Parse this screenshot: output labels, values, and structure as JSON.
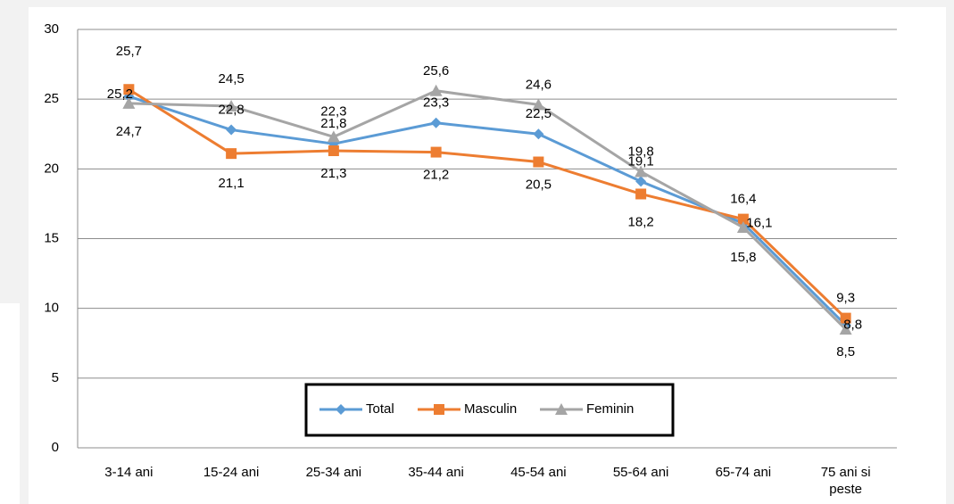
{
  "chart_data": {
    "type": "line",
    "categories": [
      "3-14 ani",
      "15-24 ani",
      "25-34 ani",
      "35-44 ani",
      "45-54 ani",
      "55-64 ani",
      "65-74 ani",
      "75 ani si peste"
    ],
    "series": [
      {
        "name": "Total",
        "color": "#5b9bd5",
        "marker": "diamond",
        "values": [
          25.2,
          22.8,
          21.8,
          23.3,
          22.5,
          19.1,
          16.1,
          8.8
        ],
        "value_labels": [
          "25,2",
          "22,8",
          "21,8",
          "23,3",
          "22,5",
          "19,1",
          "16,1",
          "8,8"
        ]
      },
      {
        "name": "Masculin",
        "color": "#ed7d31",
        "marker": "square",
        "values": [
          25.7,
          21.1,
          21.3,
          21.2,
          20.5,
          18.2,
          16.4,
          9.3
        ],
        "value_labels": [
          "25,7",
          "21,1",
          "21,3",
          "21,2",
          "20,5",
          "18,2",
          "16,4",
          "9,3"
        ]
      },
      {
        "name": "Feminin",
        "color": "#a5a5a5",
        "marker": "triangle",
        "values": [
          24.7,
          24.5,
          22.3,
          25.6,
          24.6,
          19.8,
          15.8,
          8.5
        ],
        "value_labels": [
          "24,7",
          "24,5",
          "22,3",
          "25,6",
          "24,6",
          "19,8",
          "15,8",
          "8,5"
        ]
      }
    ],
    "ylim": [
      0,
      30
    ],
    "yticks": [
      0,
      5,
      10,
      15,
      20,
      25,
      30
    ],
    "grid": true,
    "legend": "bottom"
  }
}
